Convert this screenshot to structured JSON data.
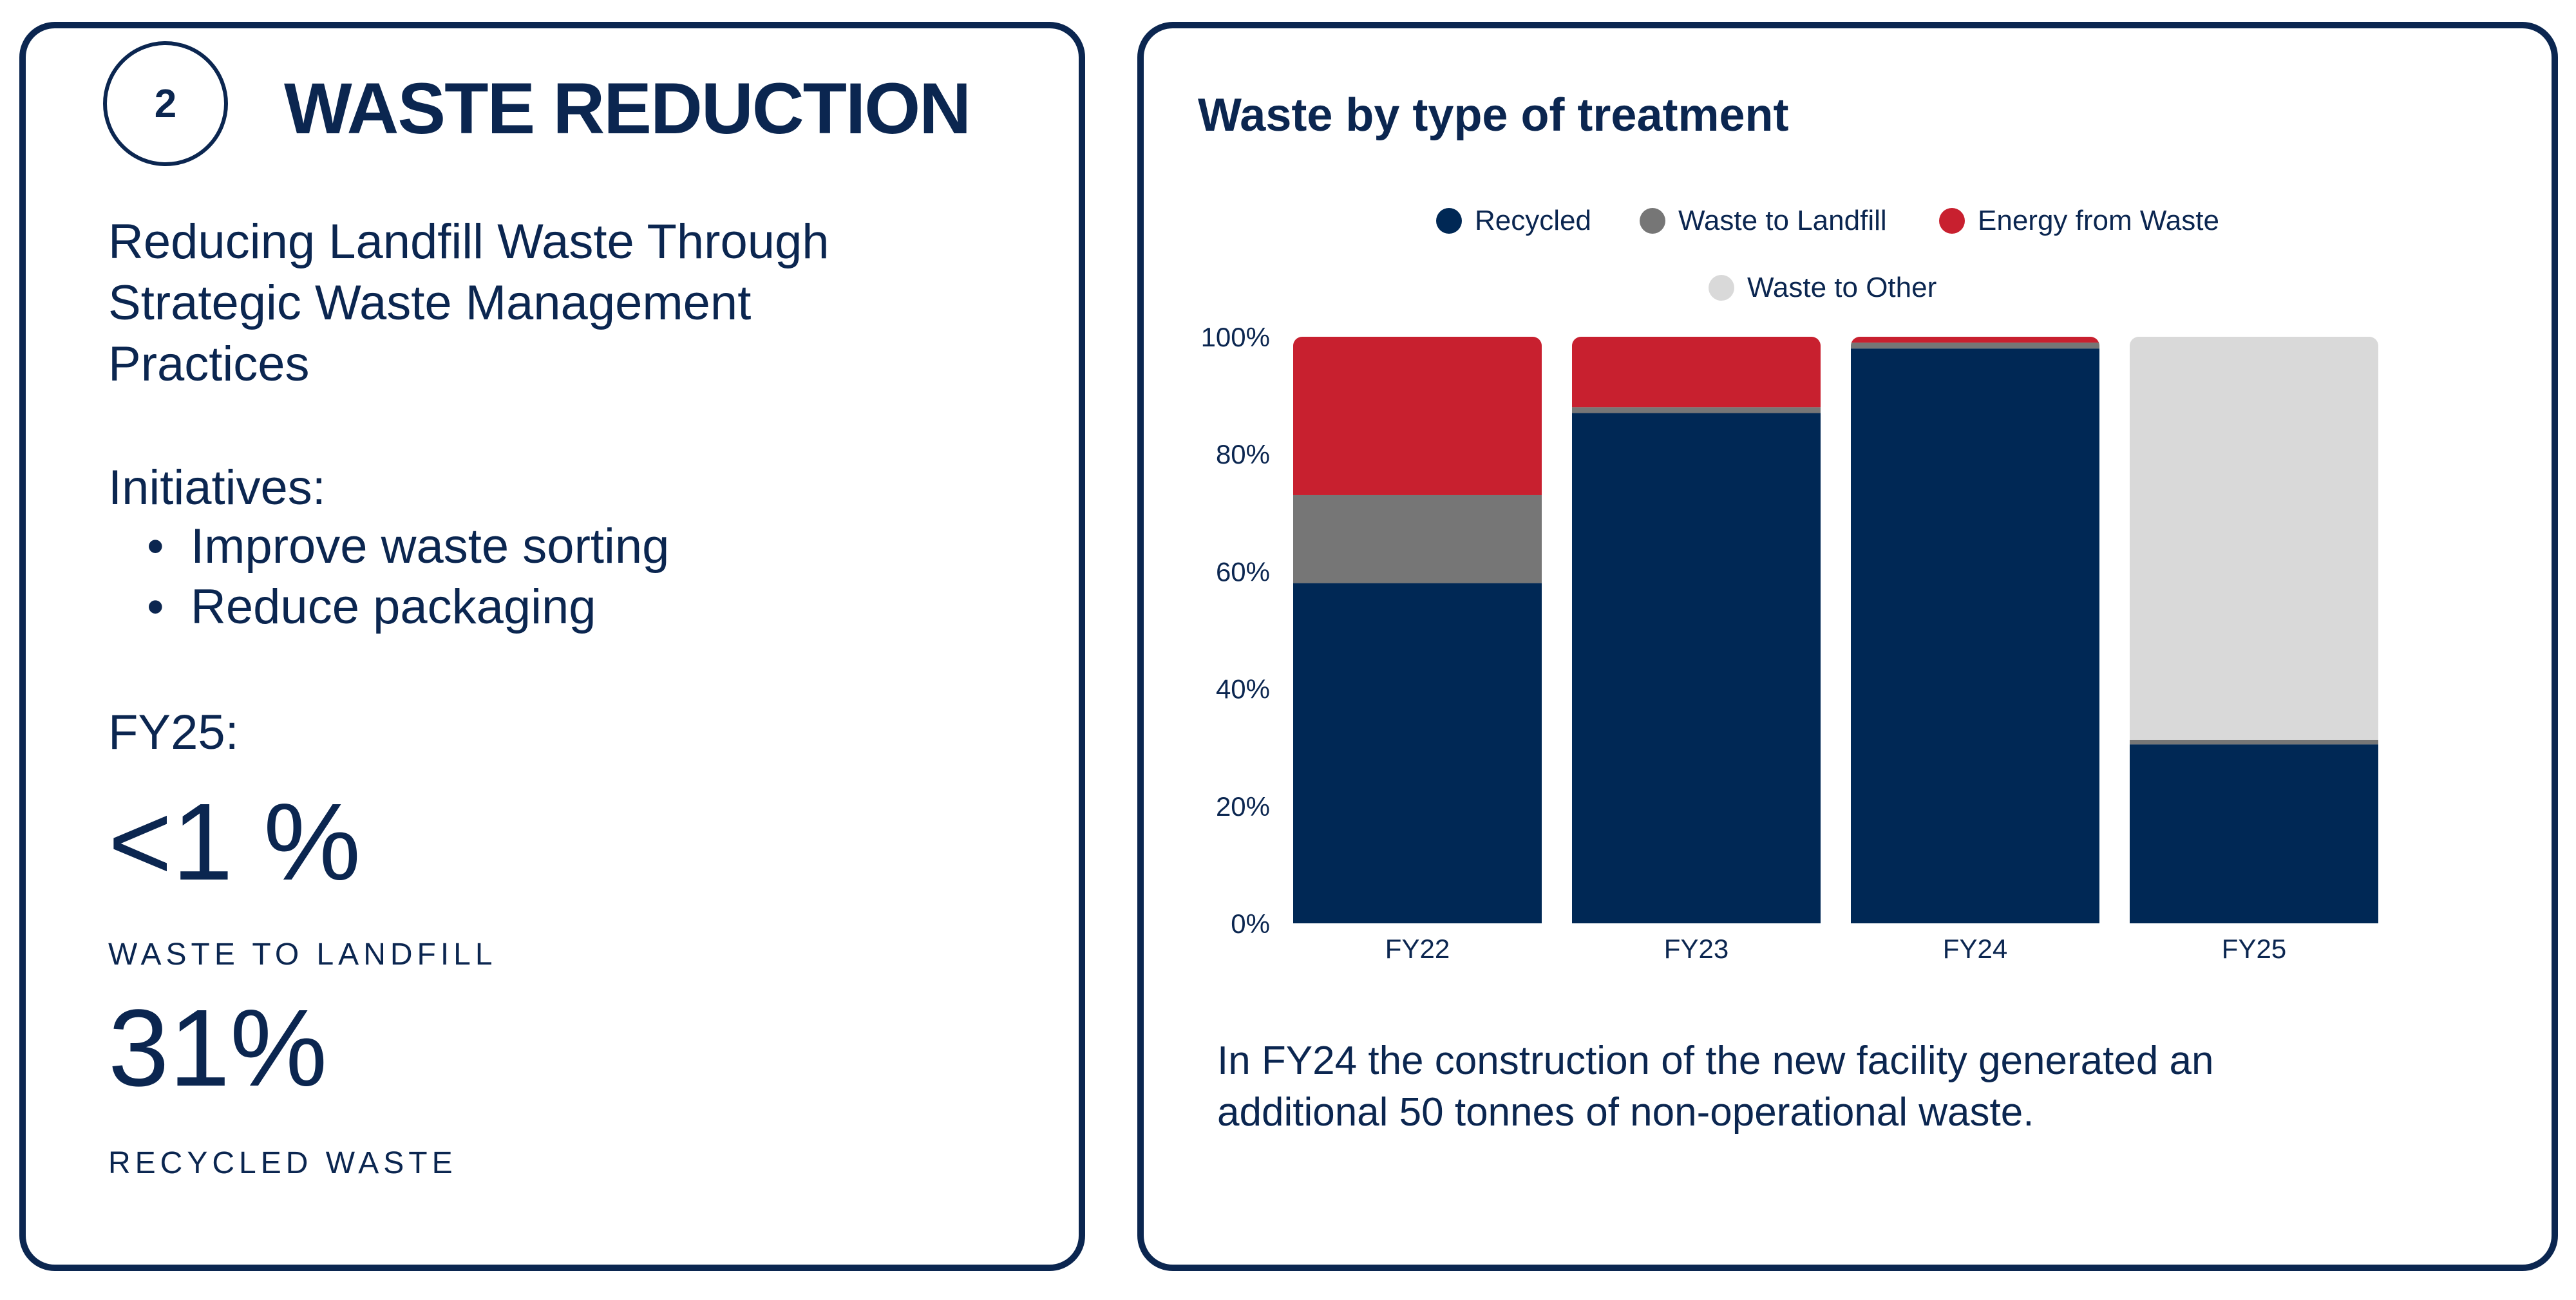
{
  "left": {
    "number": "2",
    "title": "WASTE REDUCTION",
    "subtitle_lines": [
      "Reducing Landfill Waste Through",
      "Strategic Waste Management",
      "Practices"
    ],
    "initiatives_label": "Initiatives:",
    "initiatives": [
      "Improve waste sorting",
      "Reduce packaging"
    ],
    "fy_label": "FY25:",
    "stats": [
      {
        "value": "<1 %",
        "label": "WASTE TO LANDFILL"
      },
      {
        "value": "31%",
        "label": "RECYCLED WASTE"
      }
    ]
  },
  "right": {
    "footnote_lines": [
      "In FY24 the construction of the new facility generated an",
      "additional 50 tonnes of non-operational waste."
    ]
  },
  "chart_data": {
    "type": "bar",
    "stacked": true,
    "title": "Waste by type of treatment",
    "categories": [
      "FY22",
      "FY23",
      "FY24",
      "FY25"
    ],
    "ylim": [
      0,
      100
    ],
    "yticks": [
      "0%",
      "20%",
      "40%",
      "60%",
      "80%",
      "100%"
    ],
    "legend_position": "top",
    "grid": false,
    "series": [
      {
        "name": "Recycled",
        "color": "#002855",
        "values": [
          58,
          87,
          98,
          30.5
        ]
      },
      {
        "name": "Waste to Landfill",
        "color": "#767676",
        "values": [
          15,
          1,
          1,
          0.8
        ]
      },
      {
        "name": "Energy from Waste",
        "color": "#C8202F",
        "values": [
          27,
          12,
          1,
          0
        ]
      },
      {
        "name": "Waste to Other",
        "color": "#D9D9D9",
        "values": [
          0,
          0,
          0,
          68.7
        ]
      }
    ]
  }
}
